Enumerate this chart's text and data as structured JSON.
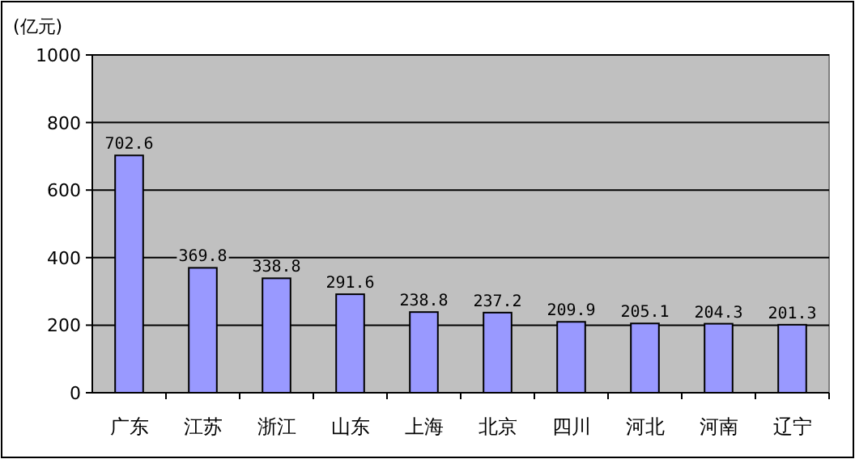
{
  "chart_data": {
    "type": "bar",
    "ylabel": "(亿元)",
    "categories": [
      "广东",
      "江苏",
      "浙江",
      "山东",
      "上海",
      "北京",
      "四川",
      "河北",
      "河南",
      "辽宁"
    ],
    "values": [
      702.6,
      369.8,
      338.8,
      291.6,
      238.8,
      237.2,
      209.9,
      205.1,
      204.3,
      201.3
    ],
    "color": "#9999ff",
    "ylim": [
      0,
      1000
    ],
    "yticks": [
      0,
      200,
      400,
      600,
      800,
      1000
    ],
    "grid": "y",
    "data_labels": true
  }
}
